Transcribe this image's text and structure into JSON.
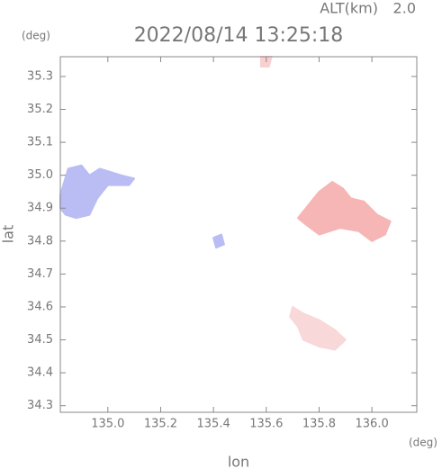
{
  "chart_data": {
    "type": "map",
    "altitude_label": "ALT(km)",
    "altitude": "2.0",
    "title": "2022/08/14 13:25:18",
    "x_label": "lon",
    "y_label": "lat",
    "x_unit": "(deg)",
    "y_unit": "(deg)",
    "xlim": [
      134.82,
      136.17
    ],
    "ylim": [
      34.28,
      35.36
    ],
    "xticks": [
      {
        "value": 135,
        "label": "135.0"
      },
      135.2,
      135.4,
      135.6,
      135.8,
      {
        "value": 136,
        "label": "136.0"
      }
    ],
    "yticks": [
      34.3,
      34.4,
      34.5,
      34.6,
      34.7,
      34.8,
      34.9,
      {
        "value": 35,
        "label": "35.0"
      },
      35.1,
      35.2,
      35.3
    ],
    "series": [
      {
        "color": "#b9bdf4",
        "x": [
          134.82,
          134.85,
          134.9,
          134.93,
          134.97,
          135.05,
          135.1,
          135.08,
          135.0,
          134.96,
          134.93,
          134.88,
          134.84,
          134.82
        ],
        "values": [
          34.94,
          35.02,
          35.03,
          35.0,
          35.02,
          35.0,
          34.99,
          34.97,
          34.97,
          34.93,
          34.88,
          34.87,
          34.88,
          34.9
        ]
      },
      {
        "color": "#f6b6b6",
        "x": [
          135.72,
          135.76,
          135.8,
          135.85,
          135.89,
          135.92,
          135.97,
          136.02,
          136.07,
          136.05,
          136.0,
          135.95,
          135.88,
          135.8,
          135.75
        ],
        "values": [
          34.87,
          34.91,
          34.95,
          34.98,
          34.96,
          34.93,
          34.92,
          34.88,
          34.86,
          34.82,
          34.8,
          34.83,
          34.84,
          34.82,
          34.85
        ]
      },
      {
        "color": "#f8d8d8",
        "x": [
          135.7,
          135.74,
          135.8,
          135.86,
          135.9,
          135.86,
          135.8,
          135.74,
          135.72,
          135.69
        ],
        "values": [
          34.6,
          34.58,
          34.56,
          34.53,
          34.5,
          34.47,
          34.48,
          34.5,
          34.54,
          34.57
        ]
      },
      {
        "color": "#b9bdf4",
        "x": [
          135.4,
          135.43,
          135.44,
          135.41
        ],
        "values": [
          34.81,
          34.82,
          34.79,
          34.78
        ]
      },
      {
        "color": "#f8d0d0",
        "x": [
          135.58,
          135.62,
          135.61,
          135.58
        ],
        "values": [
          35.36,
          35.36,
          35.33,
          35.33
        ]
      }
    ]
  }
}
